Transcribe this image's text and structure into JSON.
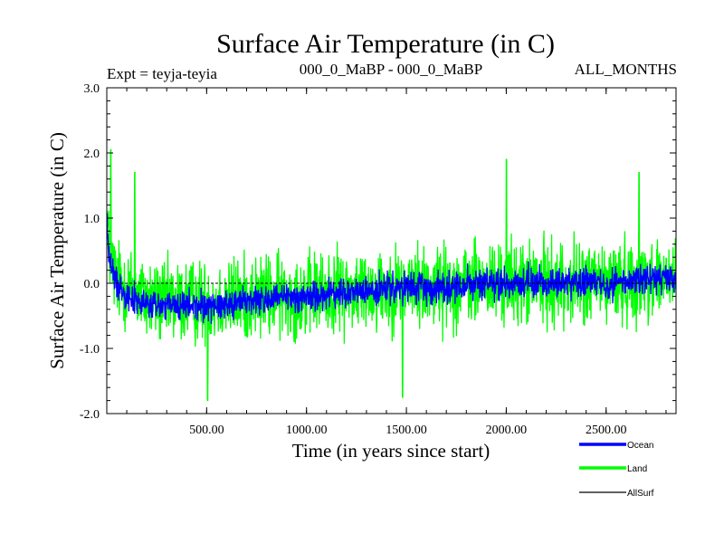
{
  "chart_data": {
    "type": "line",
    "title": "Surface Air Temperature (in C)",
    "subtitle_left": "Expt = teyja-teyia",
    "subtitle_center": "000_0_MaBP - 000_0_MaBP",
    "subtitle_right": "ALL_MONTHS",
    "xlabel": "Time (in years since start)",
    "ylabel": "Surface Air Temperature (in C)",
    "xlim": [
      0,
      2850
    ],
    "ylim": [
      -2.0,
      3.0
    ],
    "xticks": [
      500,
      1000,
      1500,
      2000,
      2500
    ],
    "xtick_labels": [
      "500.00",
      "1000.00",
      "1500.00",
      "2000.00",
      "2500.00"
    ],
    "yticks": [
      -2.0,
      -1.0,
      0.0,
      1.0,
      2.0,
      3.0
    ],
    "ytick_labels": [
      "-2.0",
      "-1.0",
      "0.0",
      "1.0",
      "2.0",
      "3.0"
    ],
    "series": [
      {
        "name": "Land",
        "color": "#00ff00",
        "x": [
          0,
          10,
          25,
          50,
          100,
          150,
          200,
          300,
          400,
          500,
          600,
          700,
          800,
          900,
          1000,
          1100,
          1200,
          1300,
          1400,
          1500,
          1600,
          1700,
          1800,
          1900,
          2000,
          2100,
          2200,
          2300,
          2400,
          2500,
          2600,
          2700,
          2800,
          2850
        ],
        "mean": [
          1.1,
          0.55,
          0.3,
          0.05,
          -0.05,
          -0.15,
          -0.25,
          -0.3,
          -0.28,
          -0.3,
          -0.25,
          -0.22,
          -0.2,
          -0.2,
          -0.18,
          -0.15,
          -0.12,
          -0.1,
          -0.08,
          -0.05,
          -0.05,
          -0.05,
          -0.02,
          -0.02,
          0.0,
          0.0,
          0.0,
          0.0,
          0.02,
          0.0,
          0.02,
          0.1,
          0.05,
          0.05
        ],
        "amplitude": 0.95,
        "peaks": [
          {
            "x": 20,
            "y": 2.05
          },
          {
            "x": 140,
            "y": 1.7
          },
          {
            "x": 2000,
            "y": 1.9
          },
          {
            "x": 2665,
            "y": 1.7
          },
          {
            "x": 505,
            "y": -1.8
          },
          {
            "x": 1480,
            "y": -1.75
          }
        ]
      },
      {
        "name": "Ocean",
        "color": "#0000ff",
        "x": [
          0,
          10,
          25,
          50,
          100,
          150,
          200,
          300,
          400,
          500,
          600,
          700,
          800,
          900,
          1000,
          1100,
          1200,
          1300,
          1400,
          1500,
          1600,
          1700,
          1800,
          1900,
          2000,
          2100,
          2200,
          2300,
          2400,
          2500,
          2600,
          2700,
          2800,
          2850
        ],
        "mean": [
          1.0,
          0.45,
          0.2,
          0.0,
          -0.15,
          -0.28,
          -0.33,
          -0.35,
          -0.35,
          -0.35,
          -0.3,
          -0.27,
          -0.25,
          -0.23,
          -0.2,
          -0.17,
          -0.15,
          -0.12,
          -0.1,
          -0.08,
          -0.07,
          -0.05,
          -0.03,
          -0.02,
          0.0,
          0.0,
          0.0,
          0.0,
          0.02,
          0.0,
          0.03,
          0.08,
          0.05,
          0.05
        ],
        "amplitude": 0.35
      },
      {
        "name": "AllSurf",
        "color": "#000000",
        "x": [
          0,
          2850
        ],
        "values": [
          0.0,
          0.0
        ]
      }
    ],
    "legend": [
      {
        "name": "Ocean",
        "color": "#0000ff"
      },
      {
        "name": "Land",
        "color": "#00ff00"
      },
      {
        "name": "AllSurf",
        "color": "#000000"
      }
    ],
    "legend_position": "bottom-right"
  }
}
